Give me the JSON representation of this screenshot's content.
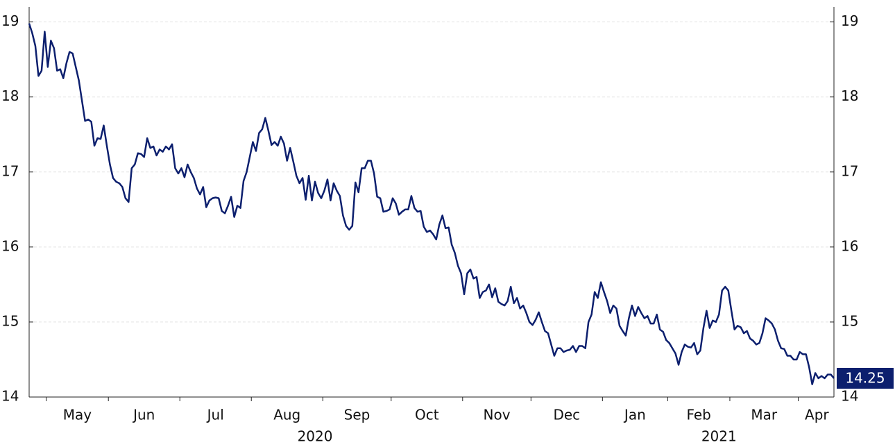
{
  "chart_data": {
    "type": "line",
    "color": "#0c1f6e",
    "ylim": [
      14,
      19.2
    ],
    "yticks": [
      14,
      15,
      16,
      17,
      18,
      19
    ],
    "grid": true,
    "groups": [
      {
        "label": "2020",
        "months": [
          {
            "label": null,
            "values": [
              18.98,
              18.85,
              18.68,
              18.28,
              18.35,
              18.87
            ]
          },
          {
            "label": "May",
            "values": [
              18.4,
              18.75,
              18.65,
              18.35,
              18.37,
              18.25,
              18.45,
              18.6,
              18.58,
              18.4,
              18.22,
              17.95,
              17.68,
              17.7,
              17.67,
              17.35,
              17.45,
              17.44,
              17.62,
              17.35
            ]
          },
          {
            "label": "Jun",
            "values": [
              17.1,
              16.92,
              16.87,
              16.85,
              16.8,
              16.65,
              16.6,
              17.05,
              17.1,
              17.25,
              17.24,
              17.2,
              17.45,
              17.32,
              17.34,
              17.22,
              17.3,
              17.27,
              17.34,
              17.3,
              17.37,
              17.05,
              16.98
            ]
          },
          {
            "label": "Jul",
            "values": [
              17.05,
              16.93,
              17.1,
              17.0,
              16.92,
              16.78,
              16.7,
              16.8,
              16.53,
              16.62,
              16.65,
              16.66,
              16.65,
              16.48,
              16.45,
              16.55,
              16.67,
              16.4,
              16.55,
              16.52,
              16.88,
              17.0,
              17.2
            ]
          },
          {
            "label": "Aug",
            "values": [
              17.4,
              17.28,
              17.52,
              17.57,
              17.72,
              17.55,
              17.36,
              17.4,
              17.35,
              17.47,
              17.38,
              17.15,
              17.32,
              17.14,
              16.95,
              16.85,
              16.92,
              16.63,
              16.95,
              16.62,
              16.87,
              16.72,
              16.65
            ]
          },
          {
            "label": "Sep",
            "values": [
              16.75,
              16.9,
              16.62,
              16.85,
              16.75,
              16.68,
              16.42,
              16.28,
              16.23,
              16.28,
              16.86,
              16.73,
              17.05,
              17.05,
              17.15,
              17.15,
              16.98,
              16.67,
              16.65,
              16.47,
              16.48,
              16.5
            ]
          },
          {
            "label": "Oct",
            "values": [
              16.65,
              16.58,
              16.43,
              16.47,
              16.5,
              16.5,
              16.68,
              16.52,
              16.47,
              16.48,
              16.27,
              16.2,
              16.22,
              16.17,
              16.1,
              16.3,
              16.42,
              16.25,
              16.26,
              16.03,
              15.92,
              15.75,
              15.65
            ]
          },
          {
            "label": "Nov",
            "values": [
              15.37,
              15.65,
              15.7,
              15.58,
              15.6,
              15.32,
              15.4,
              15.42,
              15.5,
              15.33,
              15.45,
              15.27,
              15.24,
              15.22,
              15.28,
              15.47,
              15.25,
              15.32,
              15.18,
              15.22,
              15.12,
              15.0
            ]
          },
          {
            "label": "Dec",
            "values": [
              14.96,
              15.03,
              15.13,
              15.0,
              14.88,
              14.85,
              14.7,
              14.55,
              14.65,
              14.65,
              14.6,
              14.62,
              14.63,
              14.68,
              14.6,
              14.68,
              14.68,
              14.65,
              15.0,
              15.1,
              15.4,
              15.32,
              15.53
            ]
          }
        ]
      },
      {
        "label": "2021",
        "months": [
          {
            "label": "Jan",
            "values": [
              15.4,
              15.28,
              15.12,
              15.22,
              15.18,
              14.95,
              14.88,
              14.82,
              15.05,
              15.22,
              15.08,
              15.2,
              15.12,
              15.05,
              15.08,
              14.98,
              14.98,
              15.1,
              14.9,
              14.87,
              14.76
            ]
          },
          {
            "label": "Feb",
            "values": [
              14.72,
              14.65,
              14.58,
              14.43,
              14.6,
              14.7,
              14.67,
              14.66,
              14.72,
              14.57,
              14.62,
              14.92,
              15.15,
              14.92,
              15.02,
              15.0,
              15.1,
              15.42,
              15.47,
              15.42
            ]
          },
          {
            "label": "Mar",
            "values": [
              15.15,
              14.9,
              14.95,
              14.93,
              14.85,
              14.88,
              14.78,
              14.75,
              14.7,
              14.72,
              14.85,
              15.05,
              15.02,
              14.98,
              14.9,
              14.75,
              14.65,
              14.64,
              14.55,
              14.55,
              14.5,
              14.5
            ]
          },
          {
            "label": "Apr",
            "values": [
              14.6,
              14.57,
              14.57,
              14.4,
              14.17,
              14.32,
              14.25,
              14.28,
              14.25,
              14.3,
              14.3,
              14.25
            ]
          }
        ]
      }
    ]
  }
}
